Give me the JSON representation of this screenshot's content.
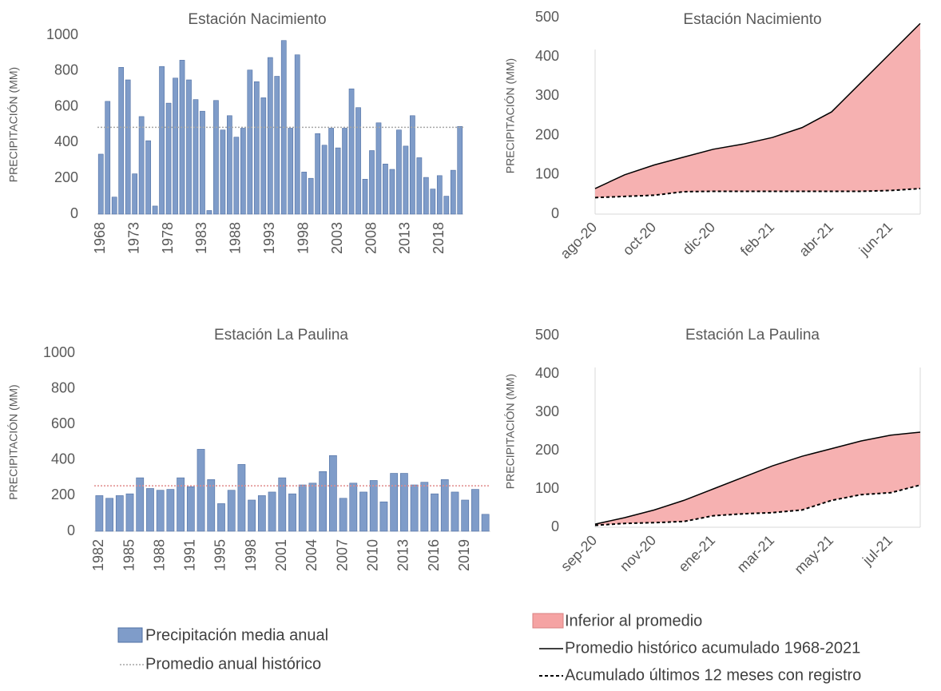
{
  "chart_data": [
    {
      "type": "bar",
      "title": "Estación Nacimiento",
      "y_label": "PRECIPITACIÓN (MM)",
      "categories": [
        "1968",
        null,
        null,
        null,
        null,
        "1973",
        null,
        null,
        null,
        null,
        "1978",
        null,
        null,
        null,
        null,
        "1983",
        null,
        null,
        null,
        null,
        "1988",
        null,
        null,
        null,
        null,
        "1993",
        null,
        null,
        null,
        null,
        "1998",
        null,
        null,
        null,
        null,
        "2003",
        null,
        null,
        null,
        null,
        "2008",
        null,
        null,
        null,
        null,
        "2013",
        null,
        null,
        null,
        null,
        "2018",
        null,
        null,
        null
      ],
      "series": [
        {
          "name": "Precipitación media anual",
          "color": "#7f9cc9",
          "values": [
            335,
            630,
            95,
            820,
            750,
            225,
            545,
            410,
            45,
            825,
            620,
            760,
            860,
            750,
            640,
            575,
            20,
            635,
            470,
            550,
            430,
            480,
            805,
            740,
            650,
            875,
            770,
            970,
            480,
            890,
            235,
            200,
            450,
            385,
            480,
            370,
            480,
            700,
            595,
            195,
            355,
            510,
            280,
            250,
            470,
            380,
            550,
            315,
            205,
            140,
            215,
            100,
            245,
            490
          ]
        }
      ],
      "reference_line": {
        "name": "Promedio anual histórico",
        "value": 485,
        "color": "#a6a6a6"
      },
      "ylim": [
        0,
        1000
      ],
      "yticks": [
        0,
        200,
        400,
        600,
        800,
        1000
      ]
    },
    {
      "type": "cumulative",
      "title": "Estación Nacimiento",
      "y_label": "PRECIPITACIÓN (MM)",
      "categories": [
        "ago-20",
        null,
        "oct-20",
        null,
        "dic-20",
        null,
        "feb-21",
        null,
        "abr-21",
        null,
        "jun-21",
        null
      ],
      "fill_between": {
        "name": "Inferior al promedio",
        "color": "#f5a3a3"
      },
      "series": [
        {
          "name": "Promedio histórico acumulado 1968-2021",
          "color": "#000000",
          "style": "solid",
          "values": [
            65,
            100,
            125,
            145,
            165,
            178,
            195,
            220,
            260,
            335,
            410,
            485
          ]
        },
        {
          "name": "Acumulado últimos 12 meses con registro",
          "color": "#000000",
          "style": "dashed",
          "values": [
            42,
            45,
            48,
            57,
            58,
            58,
            58,
            58,
            58,
            58,
            60,
            65
          ]
        }
      ],
      "ylim": [
        0,
        500
      ],
      "yticks": [
        0,
        100,
        200,
        300,
        400,
        500
      ]
    },
    {
      "type": "bar",
      "title": "Estación La Paulina",
      "y_label": "PRECIPITACIÓN (MM)",
      "categories": [
        "1982",
        null,
        null,
        "1985",
        null,
        null,
        "1988",
        null,
        null,
        "1991",
        null,
        null,
        "1995",
        null,
        null,
        "1998",
        null,
        null,
        "2001",
        null,
        null,
        "2004",
        null,
        null,
        "2007",
        null,
        null,
        "2010",
        null,
        null,
        "2013",
        null,
        null,
        "2016",
        null,
        null,
        "2019",
        null,
        null
      ],
      "series": [
        {
          "color": "#7f9cc9",
          "values": [
            200,
            185,
            200,
            210,
            300,
            240,
            230,
            235,
            300,
            250,
            460,
            290,
            155,
            230,
            375,
            175,
            200,
            220,
            300,
            210,
            260,
            270,
            335,
            425,
            185,
            270,
            220,
            285,
            165,
            325,
            325,
            260,
            275,
            210,
            290,
            220,
            175,
            235,
            95
          ]
        }
      ],
      "reference_line": {
        "value": 255,
        "color": "#e08a8a"
      },
      "ylim": [
        0,
        1000
      ],
      "yticks": [
        0,
        200,
        400,
        600,
        800,
        1000
      ]
    },
    {
      "type": "cumulative",
      "title": "Estación La Paulina",
      "y_label": "PRECIPITACIÓN (MM)",
      "categories": [
        "sep-20",
        null,
        "nov-20",
        null,
        "ene-21",
        null,
        "mar-21",
        null,
        "may-21",
        null,
        "jul-21",
        null
      ],
      "fill_between": {
        "color": "#f5a3a3"
      },
      "series": [
        {
          "color": "#000000",
          "style": "solid",
          "values": [
            8,
            25,
            45,
            70,
            100,
            130,
            160,
            185,
            205,
            225,
            240,
            248
          ]
        },
        {
          "color": "#000000",
          "style": "dashed",
          "values": [
            5,
            10,
            12,
            15,
            30,
            35,
            38,
            45,
            70,
            85,
            90,
            110
          ]
        }
      ],
      "ylim": [
        0,
        500
      ],
      "yticks": [
        0,
        100,
        200,
        300,
        400,
        500
      ]
    }
  ]
}
